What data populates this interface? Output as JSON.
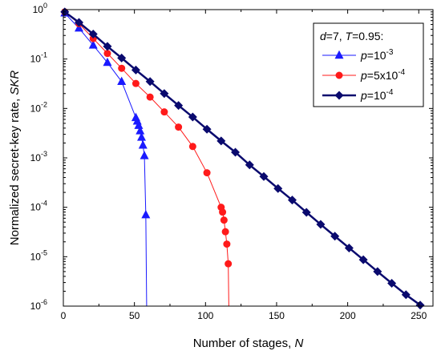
{
  "chart_data": {
    "type": "line",
    "xlabel": "Number of stages, N",
    "ylabel": "Normalized secret-key rate, SKR",
    "xlim": [
      0,
      260
    ],
    "ylim": [
      1e-06,
      1
    ],
    "yscale": "log",
    "x_ticks": [
      "0",
      "50",
      "100",
      "150",
      "200",
      "250"
    ],
    "y_ticks": [
      {
        "base": "10",
        "exp": "-6"
      },
      {
        "base": "10",
        "exp": "-5"
      },
      {
        "base": "10",
        "exp": "-4"
      },
      {
        "base": "10",
        "exp": "-3"
      },
      {
        "base": "10",
        "exp": "-2"
      },
      {
        "base": "10",
        "exp": "-1"
      },
      {
        "base": "10",
        "exp": "0"
      }
    ],
    "grid": false,
    "legend_position": "top-right",
    "legend_title": "d=7, T=0.95:",
    "series": [
      {
        "name": "p=10^-3",
        "label_text": "p=10",
        "label_sup": "-3",
        "color": "#1a1aff",
        "marker": "triangle",
        "line_width": 1,
        "points": [
          [
            1,
            0.85
          ],
          [
            11,
            0.42
          ],
          [
            21,
            0.19
          ],
          [
            31,
            0.085
          ],
          [
            41,
            0.035
          ],
          [
            51,
            0.0065
          ],
          [
            52,
            0.0055
          ],
          [
            53,
            0.0045
          ],
          [
            54,
            0.0035
          ],
          [
            55,
            0.0026
          ],
          [
            56,
            0.0018
          ],
          [
            57,
            0.0011
          ],
          [
            58,
            7e-05
          ]
        ],
        "curve": [
          [
            1,
            0.85
          ],
          [
            11,
            0.42
          ],
          [
            21,
            0.19
          ],
          [
            31,
            0.085
          ],
          [
            41,
            0.035
          ],
          [
            51,
            0.0065
          ],
          [
            52,
            0.0055
          ],
          [
            53,
            0.0045
          ],
          [
            54,
            0.0035
          ],
          [
            55,
            0.0026
          ],
          [
            56,
            0.0018
          ],
          [
            57,
            0.0011
          ],
          [
            58,
            7e-05
          ],
          [
            58.6,
            1e-06
          ]
        ]
      },
      {
        "name": "p=5x10^-4",
        "label_text": "p=5x10",
        "label_sup": "-4",
        "color": "#ff1a1a",
        "marker": "circle",
        "line_width": 1,
        "points": [
          [
            1,
            0.9
          ],
          [
            11,
            0.52
          ],
          [
            21,
            0.26
          ],
          [
            31,
            0.13
          ],
          [
            41,
            0.065
          ],
          [
            51,
            0.032
          ],
          [
            61,
            0.017
          ],
          [
            71,
            0.0085
          ],
          [
            81,
            0.0042
          ],
          [
            91,
            0.0017
          ],
          [
            101,
            0.0005
          ],
          [
            111,
            0.0001
          ],
          [
            112,
            8e-05
          ],
          [
            113,
            5.5e-05
          ],
          [
            114,
            3.2e-05
          ],
          [
            115,
            1.8e-05
          ],
          [
            116,
            7.2e-06
          ]
        ],
        "curve": [
          [
            1,
            0.9
          ],
          [
            11,
            0.52
          ],
          [
            21,
            0.26
          ],
          [
            31,
            0.13
          ],
          [
            41,
            0.065
          ],
          [
            51,
            0.032
          ],
          [
            61,
            0.017
          ],
          [
            71,
            0.0085
          ],
          [
            81,
            0.0042
          ],
          [
            91,
            0.0017
          ],
          [
            101,
            0.0005
          ],
          [
            111,
            0.0001
          ],
          [
            112,
            8e-05
          ],
          [
            113,
            5.5e-05
          ],
          [
            114,
            3.2e-05
          ],
          [
            115,
            1.8e-05
          ],
          [
            116,
            7.2e-06
          ],
          [
            116.4,
            1e-06
          ]
        ]
      },
      {
        "name": "p=10^-4",
        "label_text": "p=10",
        "label_sup": "-4",
        "color": "#0a0a6e",
        "marker": "diamond",
        "line_width": 2.5,
        "points": [
          [
            1,
            0.9
          ],
          [
            11,
            0.55
          ],
          [
            21,
            0.32
          ],
          [
            31,
            0.18
          ],
          [
            41,
            0.105
          ],
          [
            51,
            0.06
          ],
          [
            61,
            0.035
          ],
          [
            71,
            0.02
          ],
          [
            81,
            0.0115
          ],
          [
            91,
            0.0067
          ],
          [
            101,
            0.0038
          ],
          [
            111,
            0.0022
          ],
          [
            121,
            0.0013
          ],
          [
            131,
            0.00072
          ],
          [
            141,
            0.00042
          ],
          [
            151,
            0.00024
          ],
          [
            161,
            0.00014
          ],
          [
            171,
            7.9e-05
          ],
          [
            181,
            4.5e-05
          ],
          [
            191,
            2.6e-05
          ],
          [
            201,
            1.5e-05
          ],
          [
            211,
            8.7e-06
          ],
          [
            221,
            5e-06
          ],
          [
            231,
            2.9e-06
          ],
          [
            241,
            1.7e-06
          ],
          [
            251,
            1.05e-06
          ]
        ],
        "curve": [
          [
            1,
            0.9
          ],
          [
            11,
            0.55
          ],
          [
            21,
            0.32
          ],
          [
            31,
            0.18
          ],
          [
            41,
            0.105
          ],
          [
            51,
            0.06
          ],
          [
            61,
            0.035
          ],
          [
            71,
            0.02
          ],
          [
            81,
            0.0115
          ],
          [
            91,
            0.0067
          ],
          [
            101,
            0.0038
          ],
          [
            111,
            0.0022
          ],
          [
            121,
            0.0013
          ],
          [
            131,
            0.00072
          ],
          [
            141,
            0.00042
          ],
          [
            151,
            0.00024
          ],
          [
            161,
            0.00014
          ],
          [
            171,
            7.9e-05
          ],
          [
            181,
            4.5e-05
          ],
          [
            191,
            2.6e-05
          ],
          [
            201,
            1.5e-05
          ],
          [
            211,
            8.7e-06
          ],
          [
            221,
            5e-06
          ],
          [
            231,
            2.9e-06
          ],
          [
            241,
            1.7e-06
          ],
          [
            251,
            1.05e-06
          ]
        ]
      }
    ]
  }
}
